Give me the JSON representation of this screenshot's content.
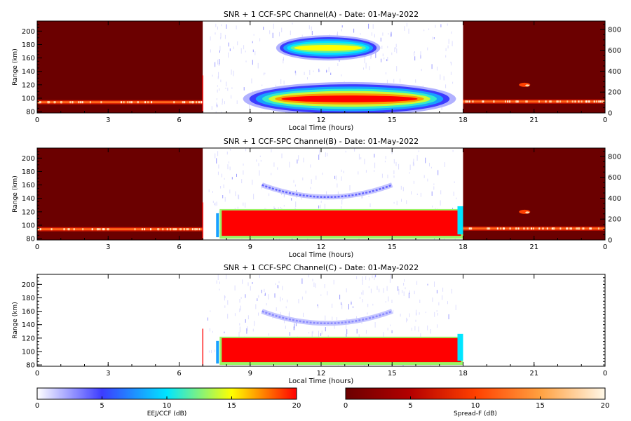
{
  "chart_data": [
    {
      "type": "heatmap",
      "title": "SNR + 1 CCF-SPC Channel(A) - Date: 01-May-2022",
      "xlabel": "Local Time (hours)",
      "ylabel": "Range (km)",
      "xlim": [
        0,
        24
      ],
      "ylim": [
        78,
        215
      ],
      "xticks": [
        "0",
        "3",
        "6",
        "9",
        "12",
        "15",
        "18",
        "21",
        "0"
      ],
      "yticks": [
        "80",
        "100",
        "120",
        "140",
        "160",
        "180",
        "200"
      ],
      "y2ticks": [
        "0",
        "200",
        "400",
        "600",
        "800"
      ],
      "y2lim": [
        0,
        880
      ],
      "day_window": [
        7.0,
        18.0
      ],
      "night_background": "#6b0000",
      "features": [
        {
          "kind": "night_band",
          "t": [
            0,
            7
          ],
          "range": 94,
          "level": 12
        },
        {
          "kind": "night_band",
          "t": [
            18,
            24
          ],
          "range": 95,
          "level": 12
        },
        {
          "kind": "night_spot",
          "t": 20.6,
          "range": 120,
          "level": 10
        },
        {
          "kind": "day_band",
          "t": [
            8.7,
            17.7
          ],
          "range": 99,
          "level": 18
        },
        {
          "kind": "day_band",
          "t": [
            10.1,
            14.5
          ],
          "range": 175,
          "level": 12
        }
      ]
    },
    {
      "type": "heatmap",
      "title": "SNR + 1 CCF-SPC Channel(B) - Date: 01-May-2022",
      "xlabel": "Local Time (hours)",
      "ylabel": "Range (km)",
      "xlim": [
        0,
        24
      ],
      "ylim": [
        78,
        215
      ],
      "xticks": [
        "0",
        "3",
        "6",
        "9",
        "12",
        "15",
        "18",
        "21",
        "0"
      ],
      "yticks": [
        "80",
        "100",
        "120",
        "140",
        "160",
        "180",
        "200"
      ],
      "y2ticks": [
        "0",
        "200",
        "400",
        "600",
        "800"
      ],
      "y2lim": [
        0,
        880
      ],
      "day_window": [
        7.0,
        18.0
      ],
      "night_background": "#6b0000",
      "features": [
        {
          "kind": "night_band",
          "t": [
            0,
            7
          ],
          "range": 94,
          "level": 12
        },
        {
          "kind": "night_band",
          "t": [
            18,
            24
          ],
          "range": 95,
          "level": 12
        },
        {
          "kind": "night_spot",
          "t": 20.6,
          "range": 120,
          "level": 10
        },
        {
          "kind": "saturated_block",
          "t": [
            7.8,
            18.0
          ],
          "range": [
            80,
            122
          ],
          "level": 20
        },
        {
          "kind": "arc",
          "t": [
            9.5,
            15.0
          ],
          "range_min": 142,
          "range_edge": 160,
          "level": 4
        }
      ]
    },
    {
      "type": "heatmap",
      "title": "SNR + 1 CCF-SPC Channel(C) - Date: 01-May-2022",
      "xlabel": "Local Time (hours)",
      "ylabel": "Range (km)",
      "xlim": [
        0,
        24
      ],
      "ylim": [
        78,
        215
      ],
      "xticks": [
        "0",
        "3",
        "6",
        "9",
        "12",
        "15",
        "18",
        "21",
        "0"
      ],
      "yticks": [
        "80",
        "100",
        "120",
        "140",
        "160",
        "180",
        "200"
      ],
      "y2ticks": [],
      "day_window": [
        7.0,
        18.0
      ],
      "night_background": "#ffffff",
      "features": [
        {
          "kind": "saturated_block",
          "t": [
            7.8,
            18.0
          ],
          "range": [
            80,
            120
          ],
          "level": 20
        },
        {
          "kind": "arc",
          "t": [
            9.5,
            15.0
          ],
          "range_min": 142,
          "range_edge": 160,
          "level": 3
        }
      ]
    }
  ],
  "colorbars": [
    {
      "label": "EEJ/CCF (dB)",
      "ticks": [
        "0",
        "5",
        "10",
        "15",
        "20"
      ],
      "stops": [
        "#ffffff",
        "#3c3cff",
        "#00e5ff",
        "#ffff00",
        "#ff0000"
      ]
    },
    {
      "label": "Spread-F (dB)",
      "ticks": [
        "0",
        "5",
        "10",
        "15",
        "20"
      ],
      "stops": [
        "#6b0000",
        "#b40000",
        "#ff4000",
        "#ffa040",
        "#fff8e8"
      ]
    }
  ]
}
